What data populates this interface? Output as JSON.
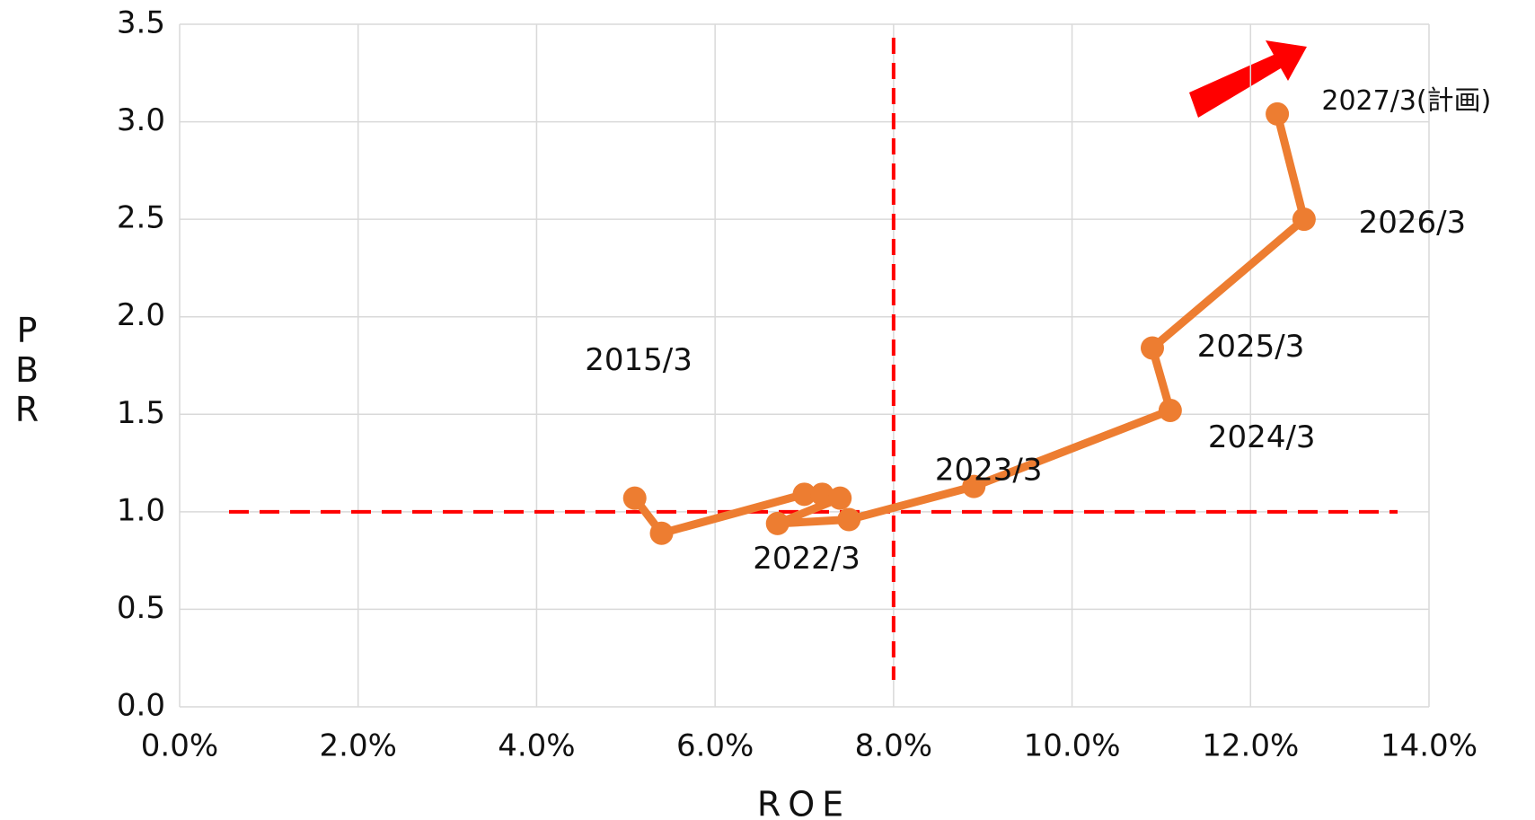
{
  "chart_data": {
    "type": "line",
    "x_label": "ROE",
    "y_label": "PBR",
    "x": [
      5.1,
      5.4,
      7.0,
      7.2,
      7.4,
      6.7,
      7.5,
      8.9,
      11.1,
      10.9,
      12.6,
      12.3
    ],
    "values": [
      1.07,
      0.89,
      1.09,
      1.09,
      1.07,
      0.94,
      0.96,
      1.13,
      1.52,
      1.84,
      2.5,
      3.04
    ],
    "point_labels": [
      "2015/3",
      null,
      null,
      null,
      null,
      null,
      "2022/3",
      "2023/3",
      "2024/3",
      "2025/3",
      "2026/3",
      "2027/3(計画)"
    ],
    "color": "#ed7d31",
    "xlim": [
      0,
      14
    ],
    "ylim": [
      0,
      3.5
    ],
    "xticks": [
      {
        "value": 0,
        "label": "0.0%"
      },
      {
        "value": 2,
        "label": "2.0%"
      },
      {
        "value": 4,
        "label": "4.0%"
      },
      {
        "value": 6,
        "label": "6.0%"
      },
      {
        "value": 8,
        "label": "8.0%"
      },
      {
        "value": 10,
        "label": "10.0%"
      },
      {
        "value": 12,
        "label": "12.0%"
      },
      {
        "value": 14,
        "label": "14.0%"
      }
    ],
    "yticks": [
      {
        "value": 0,
        "label": "0.0"
      },
      0.5,
      {
        "value": 1,
        "label": "1.0"
      },
      1.5,
      {
        "value": 2,
        "label": "2.0"
      },
      2.5,
      {
        "value": 3,
        "label": "3.0"
      },
      3.5
    ],
    "reference_lines": {
      "x": 8,
      "y": 1,
      "color": "#ff0000"
    },
    "grid": true
  }
}
